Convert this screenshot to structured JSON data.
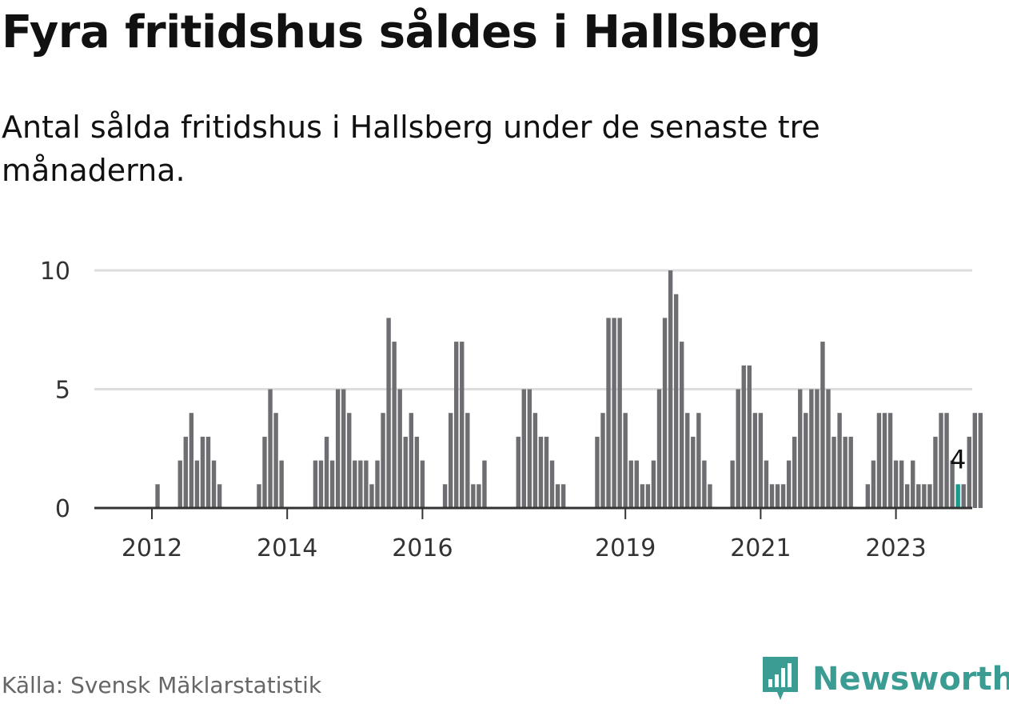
{
  "title": "Fyra fritidshus såldes i Hallsberg",
  "subtitle": "Antal sålda fritidshus i Hallsberg under de senaste tre månaderna.",
  "source": "Källa: Svensk Mäklarstatistik",
  "brand": {
    "name": "Newsworthy",
    "icon": "newsworthy-logo-icon",
    "color": "#3a9c93"
  },
  "colors": {
    "bar": "#6e6e72",
    "highlight": "#1a9a8c",
    "grid": "#dddddd",
    "axis": "#333333"
  },
  "chart_data": {
    "type": "bar",
    "title": "Fyra fritidshus såldes i Hallsberg",
    "subtitle": "Antal sålda fritidshus i Hallsberg under de senaste tre månaderna.",
    "xlabel": "",
    "ylabel": "",
    "ylim": [
      0,
      10
    ],
    "yticks": [
      0,
      5,
      10
    ],
    "xticks": [
      {
        "label": "2012",
        "index": 6
      },
      {
        "label": "2014",
        "index": 30
      },
      {
        "label": "2016",
        "index": 54
      },
      {
        "label": "2019",
        "index": 90
      },
      {
        "label": "2021",
        "index": 114
      },
      {
        "label": "2023",
        "index": 138
      }
    ],
    "grid": true,
    "legend": "none",
    "highlight": {
      "index": 149,
      "label": "4"
    },
    "values": [
      0,
      0,
      0,
      0,
      0,
      0,
      0,
      1,
      0,
      0,
      0,
      2,
      3,
      4,
      2,
      3,
      3,
      2,
      1,
      0,
      0,
      0,
      0,
      0,
      0,
      1,
      3,
      5,
      4,
      2,
      0,
      0,
      0,
      0,
      0,
      2,
      2,
      3,
      2,
      5,
      5,
      4,
      2,
      2,
      2,
      1,
      2,
      4,
      8,
      7,
      5,
      3,
      4,
      3,
      2,
      0,
      0,
      0,
      1,
      4,
      7,
      7,
      4,
      1,
      1,
      2,
      0,
      0,
      0,
      0,
      0,
      3,
      5,
      5,
      4,
      3,
      3,
      2,
      1,
      1,
      0,
      0,
      0,
      0,
      0,
      3,
      4,
      8,
      8,
      8,
      4,
      2,
      2,
      1,
      1,
      2,
      5,
      8,
      10,
      9,
      7,
      4,
      3,
      4,
      2,
      1,
      0,
      0,
      0,
      2,
      5,
      6,
      6,
      4,
      4,
      2,
      1,
      1,
      1,
      2,
      3,
      5,
      4,
      5,
      5,
      7,
      5,
      3,
      4,
      3,
      3,
      0,
      0,
      1,
      2,
      4,
      4,
      4,
      2,
      2,
      1,
      2,
      1,
      1,
      1,
      3,
      4,
      4,
      2,
      1,
      1,
      3,
      4,
      4
    ]
  }
}
